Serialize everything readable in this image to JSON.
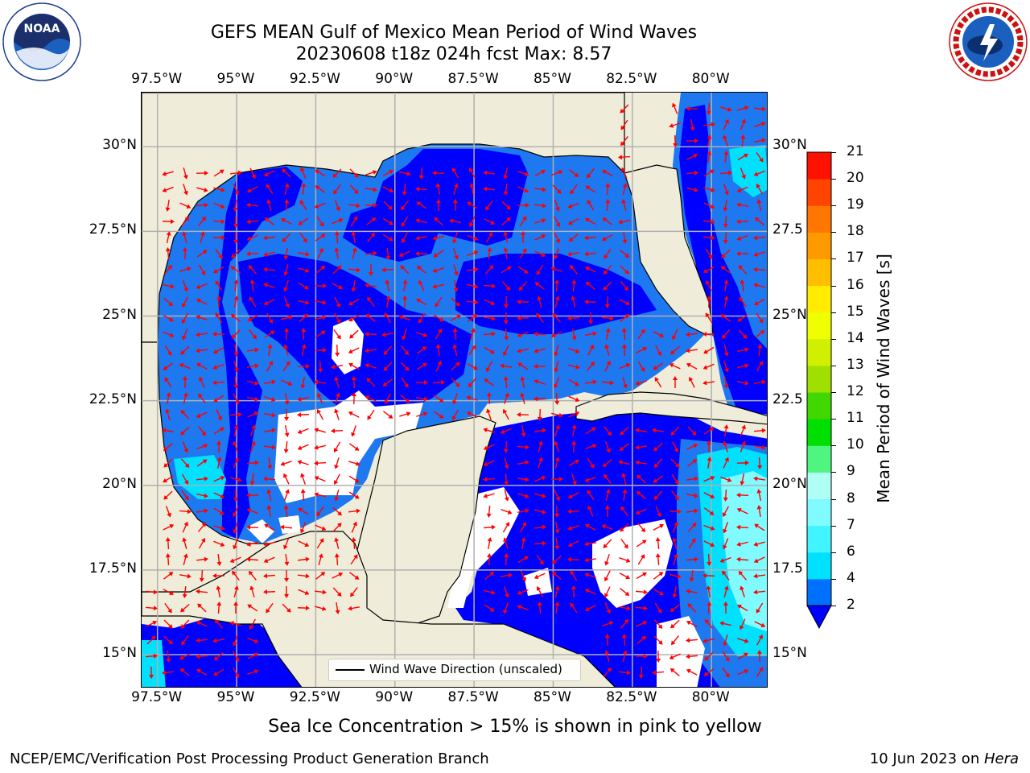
{
  "header": {
    "title_line1": "GEFS MEAN Gulf of Mexico Mean Period of Wind Waves",
    "title_line2": "20230608 t18z 024h fcst   Max: 8.57"
  },
  "logos": {
    "noaa": {
      "text": "NOAA",
      "ring_text": "NATIONAL OCEANIC AND ATMOSPHERIC ADMINISTRATION · U.S. DEPARTMENT OF COMMERCE"
    },
    "nws": {
      "ring_text": "NATIONAL WEATHER SERVICE"
    }
  },
  "map": {
    "lon_ticks": [
      "97.5°W",
      "95°W",
      "92.5°W",
      "90°W",
      "87.5°W",
      "85°W",
      "82.5°W",
      "80°W"
    ],
    "lat_ticks_left": [
      "30°N",
      "27.5°N",
      "25°N",
      "22.5°N",
      "20°N",
      "17.5°N",
      "15°N"
    ],
    "lat_ticks_right": [
      "30°N",
      "27.5",
      "25°N",
      "22.5",
      "20°N",
      "17.5",
      "15°N"
    ],
    "extent": {
      "lon_min": -98,
      "lon_max": -78.2,
      "lat_min": 14.0,
      "lat_max": 31.6
    },
    "land_color": "#efedd9",
    "arrow_color": "#ff0000",
    "grid": true,
    "legend": {
      "label": "Wind Wave Direction (unscaled)",
      "placement": "bottom-center"
    }
  },
  "colorbar": {
    "title": "Mean Period of Wind Waves [s]",
    "levels": [
      2,
      4,
      6,
      7,
      8,
      9,
      10,
      11,
      12,
      13,
      14,
      15,
      16,
      17,
      18,
      19,
      20,
      21
    ],
    "tick_labels": [
      "2",
      "4",
      "6",
      "7",
      "8",
      "9",
      "10",
      "11",
      "12",
      "13",
      "14",
      "15",
      "16",
      "17",
      "18",
      "19",
      "20",
      "21"
    ],
    "colors": [
      "#0070ff",
      "#00e0ff",
      "#40f5ff",
      "#80fbff",
      "#b0fff5",
      "#50f580",
      "#00e000",
      "#40d800",
      "#a0e000",
      "#d0f000",
      "#f0ff00",
      "#ffec00",
      "#ffbe00",
      "#ff9900",
      "#ff7700",
      "#ff4400",
      "#ff1100"
    ],
    "under_color": "#0000ff"
  },
  "footer": {
    "subtitle": "Sea Ice Concentration > 15% is shown in pink to yellow",
    "left": "NCEP/EMC/Verification Post Processing Product Generation Branch",
    "date": "10 Jun 2023 on ",
    "host": "Hera"
  }
}
